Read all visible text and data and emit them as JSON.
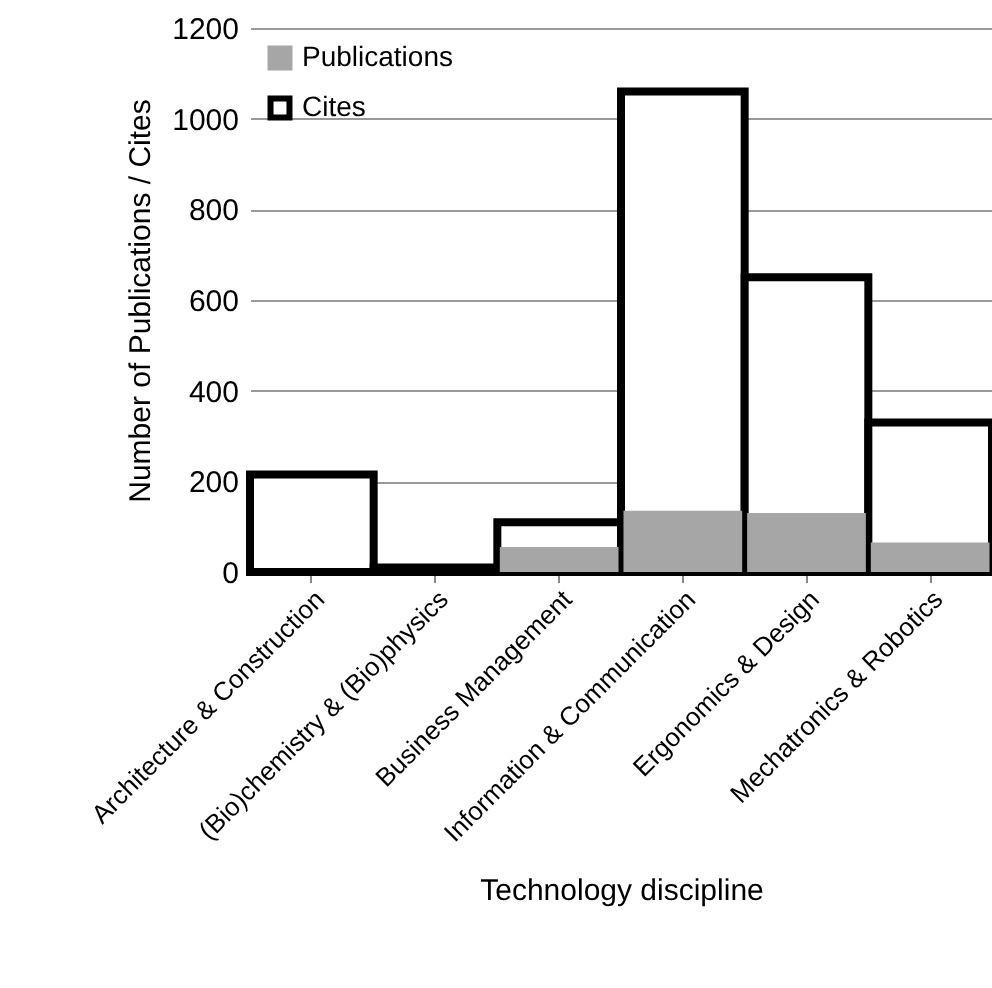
{
  "chart_data": {
    "type": "bar",
    "xlabel": "Technology discipline",
    "ylabel": "Number of Publications / Cites",
    "categories": [
      "Architecture & Construction",
      "(Bio)chemistry & (Bio)physics",
      "Business Management",
      "Information & Communication",
      "Ergonomics & Design",
      "Mechatronics & Robotics"
    ],
    "series": [
      {
        "name": "Publications",
        "color": "#a6a6a6",
        "values": [
          null,
          null,
          55,
          135,
          130,
          65
        ]
      },
      {
        "name": "Cites",
        "color": "#000000",
        "values": [
          215,
          10,
          110,
          1060,
          650,
          330
        ]
      }
    ],
    "ylim": [
      0,
      1200
    ],
    "yticks": [
      0,
      200,
      400,
      600,
      800,
      1000,
      1200
    ],
    "grid": "y",
    "legend": "top left"
  }
}
